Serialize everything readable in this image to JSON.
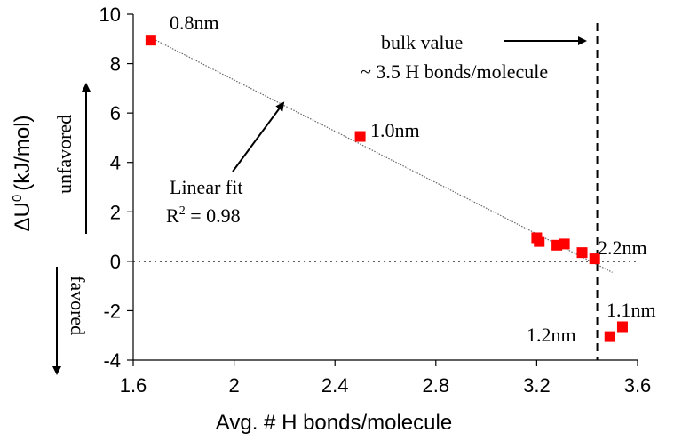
{
  "chart_data": {
    "type": "scatter",
    "title": "",
    "xlabel": "Avg. # H bonds/molecule",
    "ylabel": "ΔU",
    "ylabel_sup": "0",
    "ylabel_unit": "(kJ/mol)",
    "xlim": [
      1.6,
      3.6
    ],
    "ylim": [
      -4,
      10
    ],
    "xticks": [
      "1.6",
      "2",
      "2.4",
      "2.8",
      "3.2",
      "3.6"
    ],
    "yticks": [
      "-4",
      "-2",
      "0",
      "2",
      "4",
      "6",
      "8",
      "10"
    ],
    "grid": false,
    "series": [
      {
        "color": "#ff0000",
        "points": [
          {
            "x": 1.67,
            "y": 8.95
          },
          {
            "x": 2.5,
            "y": 5.05
          },
          {
            "x": 3.2,
            "y": 0.95
          },
          {
            "x": 3.21,
            "y": 0.8
          },
          {
            "x": 3.28,
            "y": 0.65
          },
          {
            "x": 3.31,
            "y": 0.7
          },
          {
            "x": 3.38,
            "y": 0.35
          },
          {
            "x": 3.43,
            "y": 0.1
          },
          {
            "x": 3.49,
            "y": -3.05
          },
          {
            "x": 3.54,
            "y": -2.65
          }
        ]
      }
    ],
    "fit_line": {
      "x": [
        1.67,
        3.5
      ],
      "y": [
        9.05,
        -0.45
      ],
      "color": "#666666"
    },
    "reference_lines": {
      "zero_line_y": 0,
      "bulk_line_x": 3.44
    },
    "annotations": {
      "label_08": "0.8nm",
      "label_10": "1.0nm",
      "label_22": "2.2nm",
      "label_11": "1.1nm",
      "label_12": "1.2nm",
      "bulk_line1": "bulk value",
      "bulk_line2": "~ 3.5 H bonds/molecule",
      "fit_line1": "Linear fit",
      "fit_line2_prefix": "R",
      "fit_line2_sup": "2",
      "fit_line2_suffix": " = 0.98",
      "unfavored": "unfavored",
      "favored": "favored"
    }
  }
}
